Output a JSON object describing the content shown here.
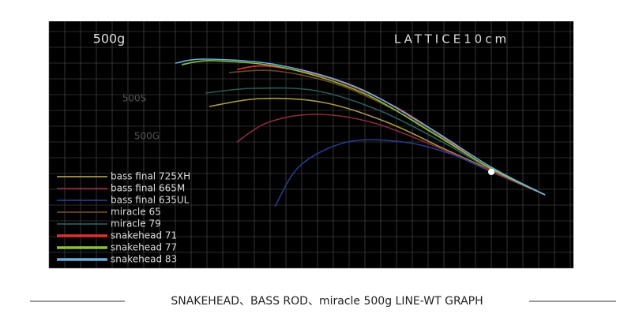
{
  "chart_data": {
    "type": "line",
    "title": "500g",
    "grid_label": "LATTICE10cm",
    "grid": true,
    "grid_step": 10,
    "xlim": [
      0,
      332
    ],
    "ylim": [
      0,
      156.5
    ],
    "annotations": [
      "500S",
      "500G"
    ],
    "caption": "SNAKEHEAD、BASS ROD、miracle 500g LINE-WT GRAPH",
    "series": [
      {
        "name": "bass final 725XH",
        "color": "#a89a4a",
        "x": [
          101.5,
          134,
          174,
          214,
          251.5,
          280,
          314
        ],
        "values": [
          102.5,
          107.5,
          105,
          92.5,
          75,
          62,
          46.5
        ]
      },
      {
        "name": "bass final 665M",
        "color": "#8a2a40",
        "x": [
          119,
          139,
          169,
          204,
          244,
          280,
          314
        ],
        "values": [
          80,
          92.5,
          97.5,
          92.5,
          77.5,
          61.5,
          46.5
        ]
      },
      {
        "name": "bass final 635UL",
        "color": "#2a3a8a",
        "x": [
          143,
          159,
          189,
          224,
          254,
          280,
          314
        ],
        "values": [
          39,
          65,
          80,
          80,
          72.5,
          61,
          46.5
        ]
      },
      {
        "name": "miracle 65",
        "color": "#6a4a2a",
        "x": [
          114,
          144,
          184,
          224,
          256.5,
          280,
          314
        ],
        "values": [
          124,
          125,
          116,
          97.5,
          77.5,
          62,
          46.5
        ]
      },
      {
        "name": "miracle 79",
        "color": "#2a5a5a",
        "x": [
          99,
          129,
          169,
          209,
          249,
          280,
          314
        ],
        "values": [
          111,
          114,
          112.5,
          100,
          80,
          62.5,
          46.5
        ]
      },
      {
        "name": "snakehead 71",
        "color": "#e03030",
        "x": [
          119,
          139,
          179,
          219,
          254,
          280,
          314
        ],
        "values": [
          126,
          128,
          120,
          102.5,
          80,
          62.5,
          46.5
        ]
      },
      {
        "name": "snakehead 77",
        "color": "#8ac040",
        "x": [
          84,
          104,
          149,
          199,
          244,
          280,
          314
        ],
        "values": [
          129,
          131.5,
          127,
          111,
          85,
          63,
          46.5
        ]
      },
      {
        "name": "snakehead 83",
        "color": "#6ab0e0",
        "x": [
          80,
          99,
          144,
          194,
          239,
          280,
          314
        ],
        "values": [
          130,
          132.5,
          129,
          115,
          90,
          64,
          46.5
        ]
      }
    ]
  }
}
